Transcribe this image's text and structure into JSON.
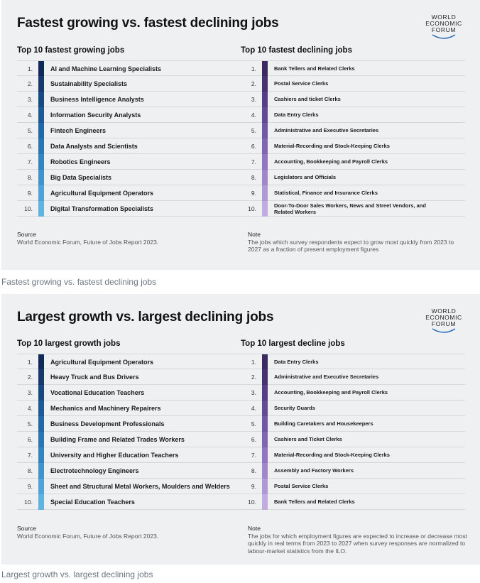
{
  "logo": [
    "WORLD",
    "ECONOMIC",
    "FORUM"
  ],
  "colors": {
    "growing": [
      "#0f2a5a",
      "#143a6e",
      "#174a82",
      "#1b5a96",
      "#2068a8",
      "#2876b6",
      "#3384c2",
      "#4094cd",
      "#4ea3d8",
      "#5fb3e3"
    ],
    "declining": [
      "#3b2a5e",
      "#46336e",
      "#553f80",
      "#634b90",
      "#7258a0",
      "#8166ae",
      "#9176bc",
      "#a187c8",
      "#b199d4",
      "#c1abdf"
    ]
  },
  "card1": {
    "title": "Fastest growing vs. fastest declining jobs",
    "left": {
      "title": "Top 10 fastest growing jobs",
      "items": [
        {
          "num": "1.",
          "label": "AI and Machine Learning Specialists"
        },
        {
          "num": "2.",
          "label": "Sustainability Specialists"
        },
        {
          "num": "3.",
          "label": "Business Intelligence Analysts"
        },
        {
          "num": "4.",
          "label": "Information Security Analysts"
        },
        {
          "num": "5.",
          "label": "Fintech Engineers"
        },
        {
          "num": "6.",
          "label": "Data Analysts and Scientists"
        },
        {
          "num": "7.",
          "label": "Robotics Engineers"
        },
        {
          "num": "8.",
          "label": "Big Data Specialists"
        },
        {
          "num": "9.",
          "label": "Agricultural Equipment Operators"
        },
        {
          "num": "10.",
          "label": "Digital Transformation Specialists"
        }
      ]
    },
    "right": {
      "title": "Top 10 fastest declining jobs",
      "items": [
        {
          "num": "1.",
          "label": "Bank Tellers and Related Clerks"
        },
        {
          "num": "2.",
          "label": "Postal Service Clerks"
        },
        {
          "num": "3.",
          "label": "Cashiers and ticket Clerks"
        },
        {
          "num": "4.",
          "label": "Data Entry Clerks"
        },
        {
          "num": "5.",
          "label": "Administrative and Executive Secretaries"
        },
        {
          "num": "6.",
          "label": "Material-Recording and Stock-Keeping Clerks"
        },
        {
          "num": "7.",
          "label": "Accounting, Bookkeeping and Payroll Clerks"
        },
        {
          "num": "8.",
          "label": "Legislators and Officials"
        },
        {
          "num": "9.",
          "label": "Statistical, Finance and Insurance Clerks"
        },
        {
          "num": "10.",
          "label": "Door-To-Door Sales Workers, News and Street Vendors, and Related Workers"
        }
      ]
    },
    "source_head": "Source",
    "source_text": "World Economic Forum, Future of Jobs Report 2023.",
    "note_head": "Note",
    "note_text": "The jobs which survey respondents expect to grow most quickly from 2023 to 2027 as a fraction of present employment figures"
  },
  "caption1": "Fastest growing vs. fastest declining jobs",
  "card2": {
    "title": "Largest growth vs. largest declining jobs",
    "left": {
      "title": "Top 10 largest growth jobs",
      "items": [
        {
          "num": "1.",
          "label": "Agricultural Equipment Operators"
        },
        {
          "num": "2.",
          "label": "Heavy Truck and Bus Drivers"
        },
        {
          "num": "3.",
          "label": "Vocational Education Teachers"
        },
        {
          "num": "4.",
          "label": "Mechanics and Machinery Repairers"
        },
        {
          "num": "5.",
          "label": "Business Development Professionals"
        },
        {
          "num": "6.",
          "label": "Building Frame and Related Trades Workers"
        },
        {
          "num": "7.",
          "label": "University and Higher Education Teachers"
        },
        {
          "num": "8.",
          "label": "Electrotechnology Engineers"
        },
        {
          "num": "9.",
          "label": "Sheet and Structural Metal Workers, Moulders and Welders"
        },
        {
          "num": "10.",
          "label": "Special Education Teachers"
        }
      ]
    },
    "right": {
      "title": "Top 10 largest decline jobs",
      "items": [
        {
          "num": "1.",
          "label": "Data Entry Clerks"
        },
        {
          "num": "2.",
          "label": "Administrative and Executive Secretaries"
        },
        {
          "num": "3.",
          "label": "Accounting, Bookkeeping and Payroll Clerks"
        },
        {
          "num": "4.",
          "label": "Security Guards"
        },
        {
          "num": "5.",
          "label": "Building Caretakers and Housekeepers"
        },
        {
          "num": "6.",
          "label": "Cashiers and Ticket Clerks"
        },
        {
          "num": "7.",
          "label": "Material-Recording and Stock-Keeping Clerks"
        },
        {
          "num": "8.",
          "label": "Assembly and Factory Workers"
        },
        {
          "num": "9.",
          "label": "Postal Service Clerks"
        },
        {
          "num": "10.",
          "label": "Bank Tellers and Related Clerks"
        }
      ]
    },
    "source_head": "Source",
    "source_text": "World Economic Forum, Future of Jobs Report 2023.",
    "note_head": "Note",
    "note_text": "The jobs for which employment figures are expected to increase or decrease most quickly in real terms from 2023 to 2027 when survey responses are normalized to labour-market statistics from the ILO."
  },
  "caption2": "Largest growth vs. largest declining jobs"
}
